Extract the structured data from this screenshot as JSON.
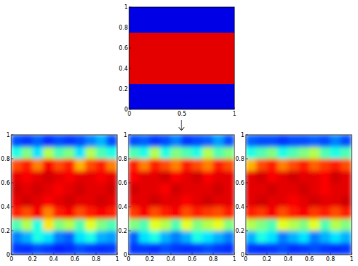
{
  "chart_data": [
    {
      "type": "heatmap",
      "xlim": [
        0,
        1
      ],
      "ylim": [
        0,
        1
      ],
      "xticks": [
        0,
        0.5,
        1
      ],
      "yticks": [
        0,
        0.2,
        0.4,
        0.6,
        0.8,
        1
      ],
      "clim": [
        0,
        1
      ],
      "x_edges": [
        0,
        1
      ],
      "y_edges": [
        0,
        0.25,
        0.75,
        1
      ],
      "cells": [
        [
          0.1
        ],
        [
          0.9
        ],
        [
          0.1
        ]
      ]
    },
    {
      "type": "heatmap",
      "xlim": [
        0,
        1
      ],
      "ylim": [
        0,
        1
      ],
      "xticks": [
        0,
        0.2,
        0.4,
        0.6,
        0.8,
        1
      ],
      "yticks": [
        0,
        0.2,
        0.4,
        0.6,
        0.8,
        1
      ],
      "clim": [
        0,
        1
      ],
      "x_edges": [
        0,
        0.1,
        0.2,
        0.3,
        0.4,
        0.5,
        0.6,
        0.7,
        0.8,
        0.9,
        1
      ],
      "y_edges": [
        0,
        0.1,
        0.2,
        0.3,
        0.4,
        0.5,
        0.6,
        0.7,
        0.8,
        0.9,
        1
      ],
      "cells": [
        [
          0.18,
          0.17,
          0.2,
          0.18,
          0.16,
          0.17,
          0.2,
          0.18,
          0.17,
          0.18
        ],
        [
          0.25,
          0.3,
          0.4,
          0.35,
          0.25,
          0.22,
          0.35,
          0.4,
          0.3,
          0.28
        ],
        [
          0.45,
          0.55,
          0.4,
          0.65,
          0.5,
          0.55,
          0.45,
          0.6,
          0.5,
          0.45
        ],
        [
          0.85,
          0.8,
          0.88,
          0.75,
          0.85,
          0.88,
          0.8,
          0.85,
          0.88,
          0.85
        ],
        [
          0.9,
          0.92,
          0.9,
          0.88,
          0.9,
          0.92,
          0.9,
          0.9,
          0.92,
          0.9
        ],
        [
          0.92,
          0.9,
          0.92,
          0.9,
          0.88,
          0.9,
          0.92,
          0.9,
          0.9,
          0.92
        ],
        [
          0.9,
          0.88,
          0.9,
          0.92,
          0.9,
          0.88,
          0.9,
          0.9,
          0.88,
          0.9
        ],
        [
          0.8,
          0.85,
          0.75,
          0.88,
          0.8,
          0.85,
          0.7,
          0.8,
          0.85,
          0.75
        ],
        [
          0.4,
          0.5,
          0.35,
          0.55,
          0.45,
          0.5,
          0.35,
          0.55,
          0.45,
          0.4
        ],
        [
          0.2,
          0.18,
          0.22,
          0.17,
          0.2,
          0.18,
          0.2,
          0.25,
          0.3,
          0.2
        ]
      ]
    },
    {
      "type": "heatmap",
      "xlim": [
        0,
        1
      ],
      "ylim": [
        0,
        1
      ],
      "xticks": [
        0,
        0.2,
        0.4,
        0.6,
        0.8,
        1
      ],
      "yticks": [
        0,
        0.2,
        0.4,
        0.6,
        0.8,
        1
      ],
      "clim": [
        0,
        1
      ],
      "x_edges": [
        0,
        0.1,
        0.2,
        0.3,
        0.4,
        0.5,
        0.6,
        0.7,
        0.8,
        0.9,
        1
      ],
      "y_edges": [
        0,
        0.1,
        0.2,
        0.3,
        0.4,
        0.5,
        0.6,
        0.7,
        0.8,
        0.9,
        1
      ],
      "cells": [
        [
          0.18,
          0.18,
          0.17,
          0.2,
          0.18,
          0.17,
          0.18,
          0.2,
          0.18,
          0.17
        ],
        [
          0.22,
          0.35,
          0.4,
          0.3,
          0.25,
          0.3,
          0.4,
          0.35,
          0.3,
          0.25
        ],
        [
          0.5,
          0.45,
          0.6,
          0.55,
          0.45,
          0.6,
          0.5,
          0.55,
          0.6,
          0.5
        ],
        [
          0.82,
          0.88,
          0.8,
          0.85,
          0.88,
          0.8,
          0.85,
          0.82,
          0.8,
          0.85
        ],
        [
          0.9,
          0.9,
          0.92,
          0.9,
          0.9,
          0.88,
          0.9,
          0.92,
          0.9,
          0.9
        ],
        [
          0.92,
          0.9,
          0.9,
          0.88,
          0.92,
          0.9,
          0.9,
          0.9,
          0.92,
          0.9
        ],
        [
          0.88,
          0.9,
          0.9,
          0.92,
          0.88,
          0.9,
          0.92,
          0.88,
          0.9,
          0.9
        ],
        [
          0.85,
          0.75,
          0.85,
          0.8,
          0.75,
          0.85,
          0.8,
          0.75,
          0.85,
          0.8
        ],
        [
          0.45,
          0.4,
          0.55,
          0.4,
          0.5,
          0.45,
          0.4,
          0.55,
          0.45,
          0.5
        ],
        [
          0.2,
          0.22,
          0.18,
          0.2,
          0.25,
          0.18,
          0.2,
          0.22,
          0.28,
          0.2
        ]
      ]
    },
    {
      "type": "heatmap",
      "xlim": [
        0,
        1
      ],
      "ylim": [
        0,
        1
      ],
      "xticks": [
        0,
        0.2,
        0.4,
        0.6,
        0.8,
        1
      ],
      "yticks": [
        0,
        0.2,
        0.4,
        0.6,
        0.8,
        1
      ],
      "clim": [
        0,
        1
      ],
      "x_edges": [
        0,
        0.1,
        0.2,
        0.3,
        0.4,
        0.5,
        0.6,
        0.7,
        0.8,
        0.9,
        1
      ],
      "y_edges": [
        0,
        0.1,
        0.2,
        0.3,
        0.4,
        0.5,
        0.6,
        0.7,
        0.8,
        0.9,
        1
      ],
      "cells": [
        [
          0.18,
          0.17,
          0.18,
          0.2,
          0.17,
          0.18,
          0.2,
          0.18,
          0.17,
          0.18
        ],
        [
          0.3,
          0.4,
          0.35,
          0.25,
          0.3,
          0.35,
          0.25,
          0.3,
          0.35,
          0.3
        ],
        [
          0.55,
          0.5,
          0.45,
          0.6,
          0.55,
          0.5,
          0.6,
          0.45,
          0.55,
          0.5
        ],
        [
          0.85,
          0.82,
          0.88,
          0.8,
          0.85,
          0.88,
          0.82,
          0.85,
          0.8,
          0.85
        ],
        [
          0.9,
          0.92,
          0.9,
          0.9,
          0.88,
          0.9,
          0.92,
          0.9,
          0.9,
          0.92
        ],
        [
          0.9,
          0.9,
          0.92,
          0.9,
          0.9,
          0.92,
          0.9,
          0.88,
          0.9,
          0.9
        ],
        [
          0.9,
          0.92,
          0.88,
          0.9,
          0.92,
          0.9,
          0.9,
          0.88,
          0.92,
          0.9
        ],
        [
          0.7,
          0.8,
          0.85,
          0.75,
          0.8,
          0.85,
          0.78,
          0.82,
          0.85,
          0.8
        ],
        [
          0.4,
          0.45,
          0.5,
          0.4,
          0.45,
          0.5,
          0.55,
          0.45,
          0.4,
          0.45
        ],
        [
          0.22,
          0.2,
          0.2,
          0.18,
          0.2,
          0.2,
          0.22,
          0.2,
          0.25,
          0.2
        ]
      ]
    }
  ]
}
